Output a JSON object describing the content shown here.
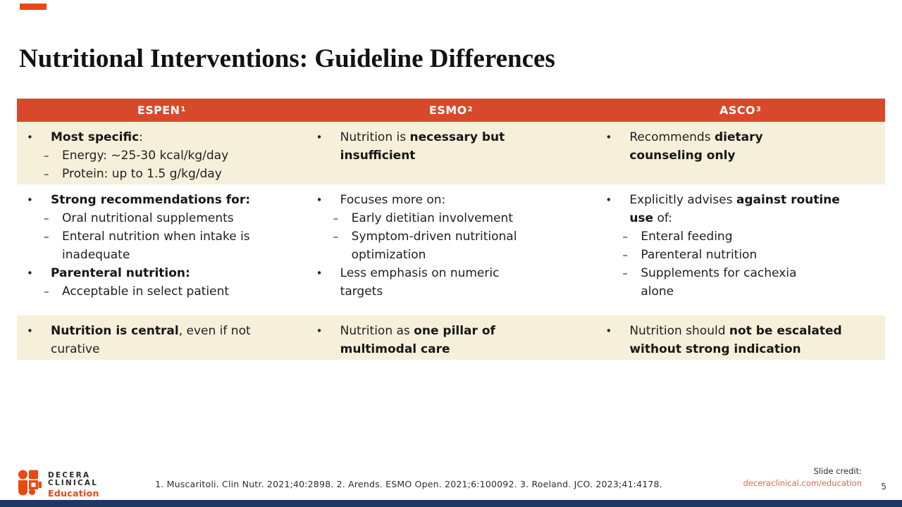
{
  "slide": {
    "title": "Nutritional Interventions: Guideline Differences",
    "page_number": "5"
  },
  "colors": {
    "header_bg": "#D8492B",
    "shaded_row_bg": "#F6EFDA",
    "accent_orange": "#E8490F",
    "link_orange": "#E2654B",
    "bottom_bar_navy": "#1E3765"
  },
  "table": {
    "columns": [
      {
        "label": "ESPEN",
        "sup": "1"
      },
      {
        "label": "ESMO",
        "sup": "2"
      },
      {
        "label": "ASCO",
        "sup": "3"
      }
    ],
    "rows": [
      {
        "shaded": true,
        "cells": [
          {
            "items": [
              {
                "level": 1,
                "text": "**Most specific**:"
              },
              {
                "level": 2,
                "text": "Energy: ~25-30 kcal/kg/day"
              },
              {
                "level": 2,
                "text": "Protein: up to 1.5 g/kg/day"
              }
            ]
          },
          {
            "items": [
              {
                "level": 1,
                "text": "Nutrition is **necessary but\ninsufficient**"
              }
            ]
          },
          {
            "items": [
              {
                "level": 1,
                "text": "Recommends **dietary\ncounseling only**"
              }
            ]
          }
        ]
      },
      {
        "shaded": false,
        "cells": [
          {
            "items": [
              {
                "level": 1,
                "text": "**Strong recommendations for:**"
              },
              {
                "level": 2,
                "text": "Oral nutritional supplements"
              },
              {
                "level": 2,
                "text": "Enteral nutrition when intake is\ninadequate"
              },
              {
                "level": 1,
                "text": "**Parenteral nutrition:**"
              },
              {
                "level": 2,
                "text": "Acceptable in select patient"
              }
            ]
          },
          {
            "items": [
              {
                "level": 1,
                "text": "Focuses more on:"
              },
              {
                "level": 2,
                "text": "Early dietitian involvement"
              },
              {
                "level": 2,
                "text": "Symptom-driven nutritional\noptimization"
              },
              {
                "level": 1,
                "text": "Less emphasis on numeric\ntargets"
              }
            ]
          },
          {
            "items": [
              {
                "level": 1,
                "text": "Explicitly advises **against routine\nuse** of:"
              },
              {
                "level": 2,
                "text": "Enteral feeding"
              },
              {
                "level": 2,
                "text": "Parenteral nutrition"
              },
              {
                "level": 2,
                "text": "Supplements for cachexia\nalone"
              }
            ]
          }
        ]
      },
      {
        "shaded": true,
        "cells": [
          {
            "items": [
              {
                "level": 1,
                "text": "**Nutrition is central**, even if not\ncurative"
              }
            ]
          },
          {
            "items": [
              {
                "level": 1,
                "text": "Nutrition as **one pillar of\nmultimodal care**"
              }
            ]
          },
          {
            "items": [
              {
                "level": 1,
                "text": "Nutrition should **not be escalated\nwithout strong indication**"
              }
            ]
          }
        ]
      }
    ]
  },
  "footer": {
    "logo_name_line1": "DECERA",
    "logo_name_line2": "CLINICAL",
    "logo_sub": "Education",
    "citation": "1. Muscaritoli. Clin Nutr. 2021;40:2898. 2. Arends. ESMO Open. 2021;6:100092. 3. Roeland. JCO. 2023;41:4178.",
    "credit_label": "Slide credit:",
    "credit_link": "deceraclinical.com/education",
    "page": "5"
  }
}
